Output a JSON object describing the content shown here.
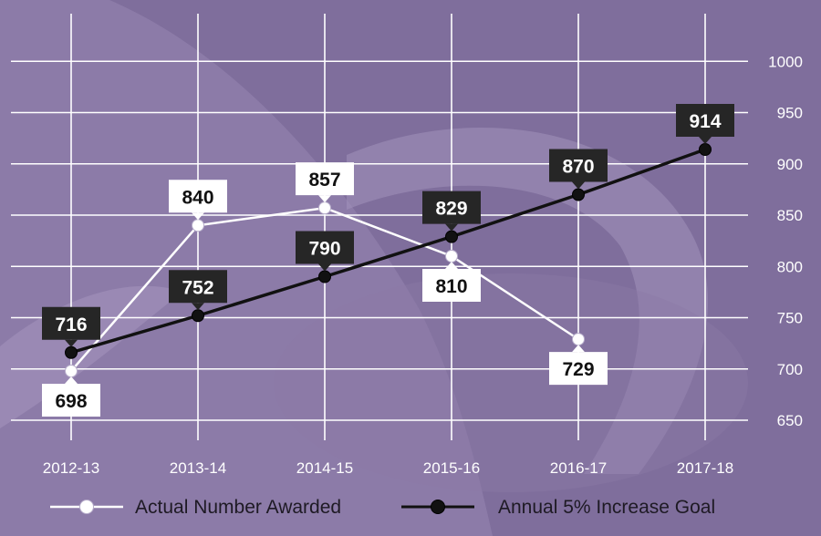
{
  "chart_data": {
    "type": "line",
    "categories": [
      "2012-13",
      "2013-14",
      "2014-15",
      "2015-16",
      "2016-17",
      "2017-18"
    ],
    "series": [
      {
        "name": "Actual Number Awarded",
        "values": [
          698,
          840,
          857,
          810,
          729,
          null
        ],
        "color": "#ffffff",
        "labels": [
          "698",
          "840",
          "857",
          "810",
          "729",
          ""
        ],
        "label_side": [
          "below",
          "above",
          "above",
          "below",
          "below",
          ""
        ]
      },
      {
        "name": "Annual 5% Increase Goal",
        "values": [
          716,
          752,
          790,
          829,
          870,
          914
        ],
        "color": "#111111",
        "labels": [
          "716",
          "752",
          "790",
          "829",
          "870",
          "914"
        ],
        "label_side": [
          "above",
          "above",
          "above",
          "above",
          "above",
          "above"
        ]
      }
    ],
    "ylim": [
      650,
      1000
    ],
    "yticks": [
      "650",
      "700",
      "750",
      "800",
      "850",
      "900",
      "950",
      "1000"
    ],
    "ytick_values": [
      650,
      700,
      750,
      800,
      850,
      900,
      950,
      1000
    ],
    "grid": true,
    "y_axis_side": "right",
    "legend_position": "bottom",
    "background": "#7f6e9c",
    "grid_color": "#ffffff"
  }
}
